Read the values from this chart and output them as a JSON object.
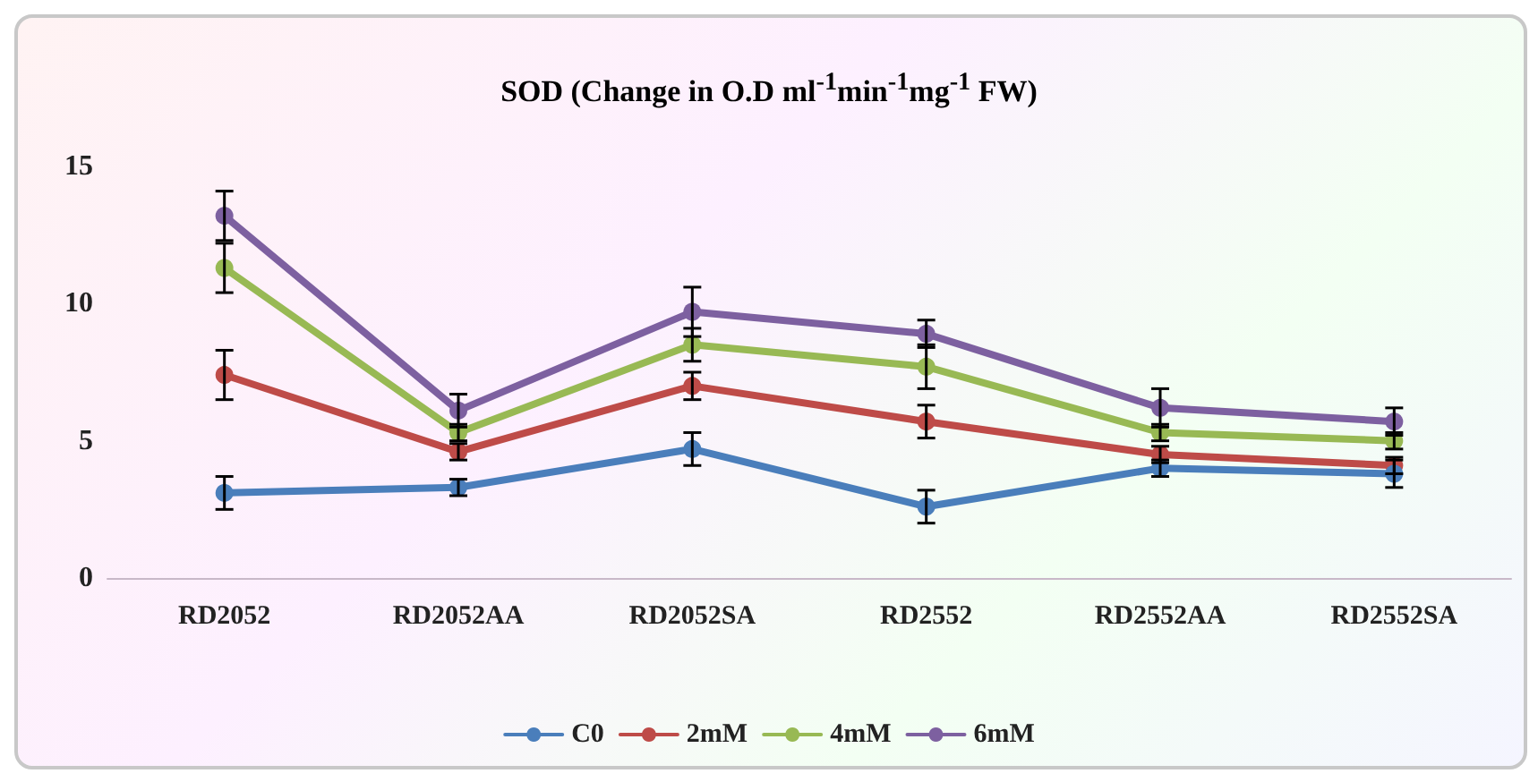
{
  "chart_data": {
    "type": "line",
    "title": "SOD (Change in O.D ml$^{-1}$min$^{-1}$mg$^{-1}$ FW)",
    "categories": [
      "RD2052",
      "RD2052AA",
      "RD2052SA",
      "RD2552",
      "RD2552AA",
      "RD2552SA"
    ],
    "series": [
      {
        "name": "C0",
        "color": "#4a7ebb",
        "values": [
          3.1,
          3.3,
          4.7,
          2.6,
          4.0,
          3.8
        ],
        "errors": [
          0.6,
          0.3,
          0.6,
          0.6,
          0.3,
          0.5
        ]
      },
      {
        "name": "2mM",
        "color": "#be4b48",
        "values": [
          7.4,
          4.6,
          7.0,
          5.7,
          4.5,
          4.1
        ],
        "errors": [
          0.9,
          0.3,
          0.5,
          0.6,
          0.3,
          0.3
        ]
      },
      {
        "name": "4mM",
        "color": "#98b954",
        "values": [
          11.3,
          5.3,
          8.5,
          7.7,
          5.3,
          5.0
        ],
        "errors": [
          0.9,
          0.3,
          0.6,
          0.8,
          0.3,
          0.3
        ]
      },
      {
        "name": "6mM",
        "color": "#7d60a0",
        "values": [
          13.2,
          6.1,
          9.7,
          8.9,
          6.2,
          5.7
        ],
        "errors": [
          0.9,
          0.6,
          0.9,
          0.5,
          0.7,
          0.5
        ]
      }
    ],
    "ylim": [
      0,
      15
    ],
    "yticks": [
      0,
      5,
      10,
      15
    ],
    "grid": false,
    "legend": "bottom",
    "marker": "circle",
    "line_style": "solid"
  }
}
